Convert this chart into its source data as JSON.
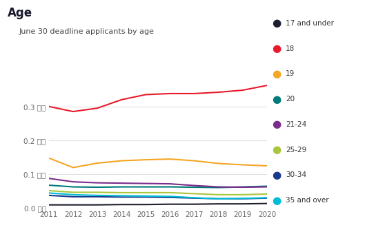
{
  "title": "Age",
  "subtitle": "June 30 deadline applicants by age",
  "years": [
    2011,
    2012,
    2013,
    2014,
    2015,
    2016,
    2017,
    2018,
    2019,
    2020
  ],
  "series": {
    "17 and under": {
      "color": "#1c1f2e",
      "values": [
        0.01,
        0.01,
        0.01,
        0.011,
        0.011,
        0.012,
        0.012,
        0.013,
        0.013,
        0.014
      ]
    },
    "18": {
      "color": "#e8192c",
      "values": [
        0.3,
        0.285,
        0.295,
        0.32,
        0.335,
        0.338,
        0.338,
        0.342,
        0.348,
        0.362
      ]
    },
    "19": {
      "color": "#f5a623",
      "values": [
        0.148,
        0.12,
        0.133,
        0.14,
        0.143,
        0.145,
        0.14,
        0.132,
        0.128,
        0.125
      ]
    },
    "20": {
      "color": "#007a7a",
      "values": [
        0.068,
        0.063,
        0.062,
        0.063,
        0.063,
        0.063,
        0.062,
        0.061,
        0.063,
        0.065
      ]
    },
    "21-24": {
      "color": "#7b2d8b",
      "values": [
        0.088,
        0.078,
        0.075,
        0.074,
        0.073,
        0.072,
        0.067,
        0.063,
        0.062,
        0.063
      ]
    },
    "25-29": {
      "color": "#a8c63c",
      "values": [
        0.052,
        0.047,
        0.047,
        0.046,
        0.046,
        0.046,
        0.043,
        0.04,
        0.04,
        0.042
      ]
    },
    "30-34": {
      "color": "#1a3a8f",
      "values": [
        0.038,
        0.034,
        0.034,
        0.033,
        0.033,
        0.032,
        0.03,
        0.028,
        0.028,
        0.03
      ]
    },
    "35 and over": {
      "color": "#00bcd4",
      "values": [
        0.045,
        0.04,
        0.038,
        0.037,
        0.036,
        0.035,
        0.031,
        0.028,
        0.029,
        0.031
      ]
    }
  },
  "ylim": [
    0.0,
    0.4
  ],
  "yticks": [
    0.0,
    0.1,
    0.2,
    0.3
  ],
  "ytick_labels": [
    "0.0 百万",
    "0.1 百万",
    "0.2 百万",
    "0.3 百万"
  ],
  "bg_color": "#ffffff",
  "grid_color": "#e0e0e0"
}
